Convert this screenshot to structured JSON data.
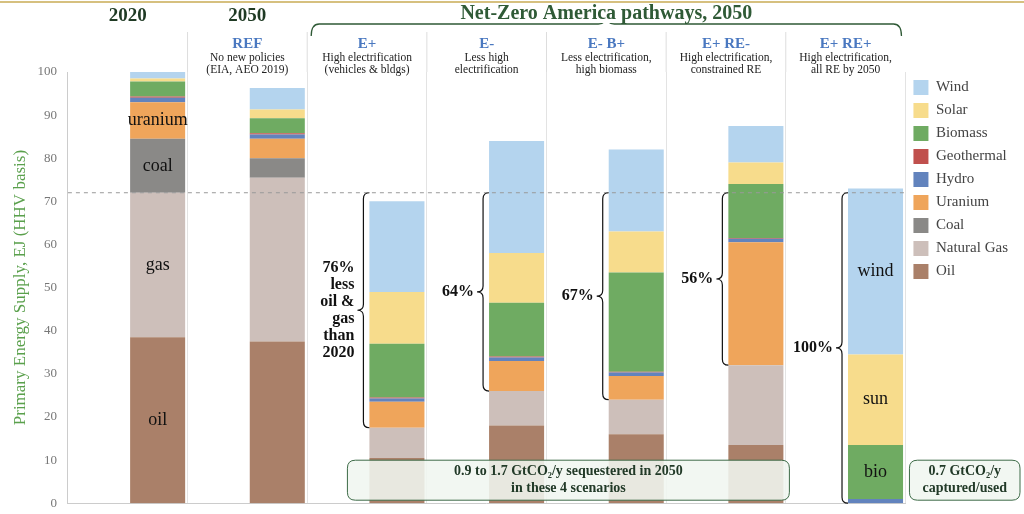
{
  "chart_data": {
    "type": "bar",
    "stacked": true,
    "grid": "x",
    "legend": "top-right",
    "y_label": "Primary Energy Supply, EJ (HHV basis)",
    "ylim": [
      0,
      100
    ],
    "yticks": [
      0,
      10,
      20,
      30,
      40,
      50,
      60,
      70,
      80,
      90,
      100
    ],
    "categories": [
      "2020",
      "REF",
      "E+",
      "E-",
      "E- B+",
      "E+ RE-",
      "E+ RE+"
    ],
    "category_descriptions": [
      null,
      [
        "No new policies",
        "(EIA, AEO 2019)"
      ],
      [
        "High electrification",
        "(vehicles & bldgs)"
      ],
      [
        "Less high",
        "electrification"
      ],
      [
        "Less electrification,",
        "high biomass"
      ],
      [
        "High electrification,",
        "constrained RE"
      ],
      [
        "High electrification,",
        "all RE by 2050"
      ]
    ],
    "groups": [
      {
        "label": "2050",
        "categories": [
          "REF"
        ]
      },
      {
        "label": "Net-Zero America pathways, 2050",
        "categories": [
          "E+",
          "E-",
          "E- B+",
          "E+ RE-",
          "E+ RE+"
        ]
      }
    ],
    "series": [
      {
        "name": "Oil",
        "color": "#aa8069",
        "values": [
          38.5,
          37.5,
          10.5,
          18,
          16,
          13.5,
          0
        ]
      },
      {
        "name": "Natural Gas",
        "color": "#cdbfba",
        "values": [
          33.5,
          38,
          7,
          8,
          8,
          18.5,
          0
        ]
      },
      {
        "name": "Coal",
        "color": "#8a8987",
        "values": [
          12.5,
          4.5,
          0,
          0,
          0,
          0,
          0
        ]
      },
      {
        "name": "Uranium",
        "color": "#efa55b",
        "values": [
          8.5,
          4.5,
          6,
          7,
          5.5,
          28.5,
          0
        ]
      },
      {
        "name": "Hydro",
        "color": "#6283bd",
        "values": [
          1,
          1,
          0.8,
          0.8,
          0.8,
          0.8,
          1
        ]
      },
      {
        "name": "Geothermal",
        "color": "#c0504d",
        "values": [
          0.3,
          0.3,
          0.2,
          0.2,
          0.2,
          0.2,
          0
        ]
      },
      {
        "name": "Biomass",
        "color": "#6fab62",
        "values": [
          3.5,
          3.5,
          12.5,
          12.5,
          23,
          12.5,
          12.5
        ]
      },
      {
        "name": "Solar",
        "color": "#f7dc8c",
        "values": [
          0.7,
          2,
          12,
          11.5,
          9.5,
          5,
          21
        ]
      },
      {
        "name": "Wind",
        "color": "#b4d4ee",
        "values": [
          1.5,
          5,
          21,
          26,
          19,
          8.5,
          38.5
        ]
      }
    ],
    "reference_line": {
      "value": 72,
      "line_style": "dashed"
    },
    "segment_labels": [
      {
        "category": "2020",
        "series": "Uranium",
        "text": "uranium"
      },
      {
        "category": "2020",
        "series": "Coal",
        "text": "coal"
      },
      {
        "category": "2020",
        "series": "Natural Gas",
        "text": "gas"
      },
      {
        "category": "2020",
        "series": "Oil",
        "text": "oil"
      },
      {
        "category": "E+ RE+",
        "series": "Wind",
        "text": "wind"
      },
      {
        "category": "E+ RE+",
        "series": "Solar",
        "text": "sun"
      },
      {
        "category": "E+ RE+",
        "series": "Biomass",
        "text": "bio"
      }
    ],
    "brackets": [
      {
        "category": "E+",
        "from_series": [
          "Oil",
          "Natural Gas"
        ],
        "lines": [
          "76%",
          "less",
          "oil &",
          "gas",
          "than",
          "2020"
        ]
      },
      {
        "category": "E-",
        "from_series": [
          "Oil",
          "Natural Gas"
        ],
        "lines": [
          "64%"
        ]
      },
      {
        "category": "E- B+",
        "from_series": [
          "Oil",
          "Natural Gas"
        ],
        "lines": [
          "67%"
        ]
      },
      {
        "category": "E+ RE-",
        "from_series": [
          "Oil",
          "Natural Gas"
        ],
        "lines": [
          "56%"
        ]
      },
      {
        "category": "E+ RE+",
        "from_series": [
          "Oil",
          "Natural Gas"
        ],
        "lines": [
          "100%"
        ]
      }
    ],
    "notes": [
      {
        "lines": [
          "0.9 to 1.7 GtCO₂/y sequestered in 2050",
          "in these 4 scenarios"
        ],
        "categories": [
          "E+",
          "E-",
          "E- B+",
          "E+ RE-"
        ]
      },
      {
        "lines": [
          "0.7 GtCO₂/y",
          "captured/used"
        ],
        "categories": [
          "E+ RE+"
        ]
      }
    ]
  }
}
